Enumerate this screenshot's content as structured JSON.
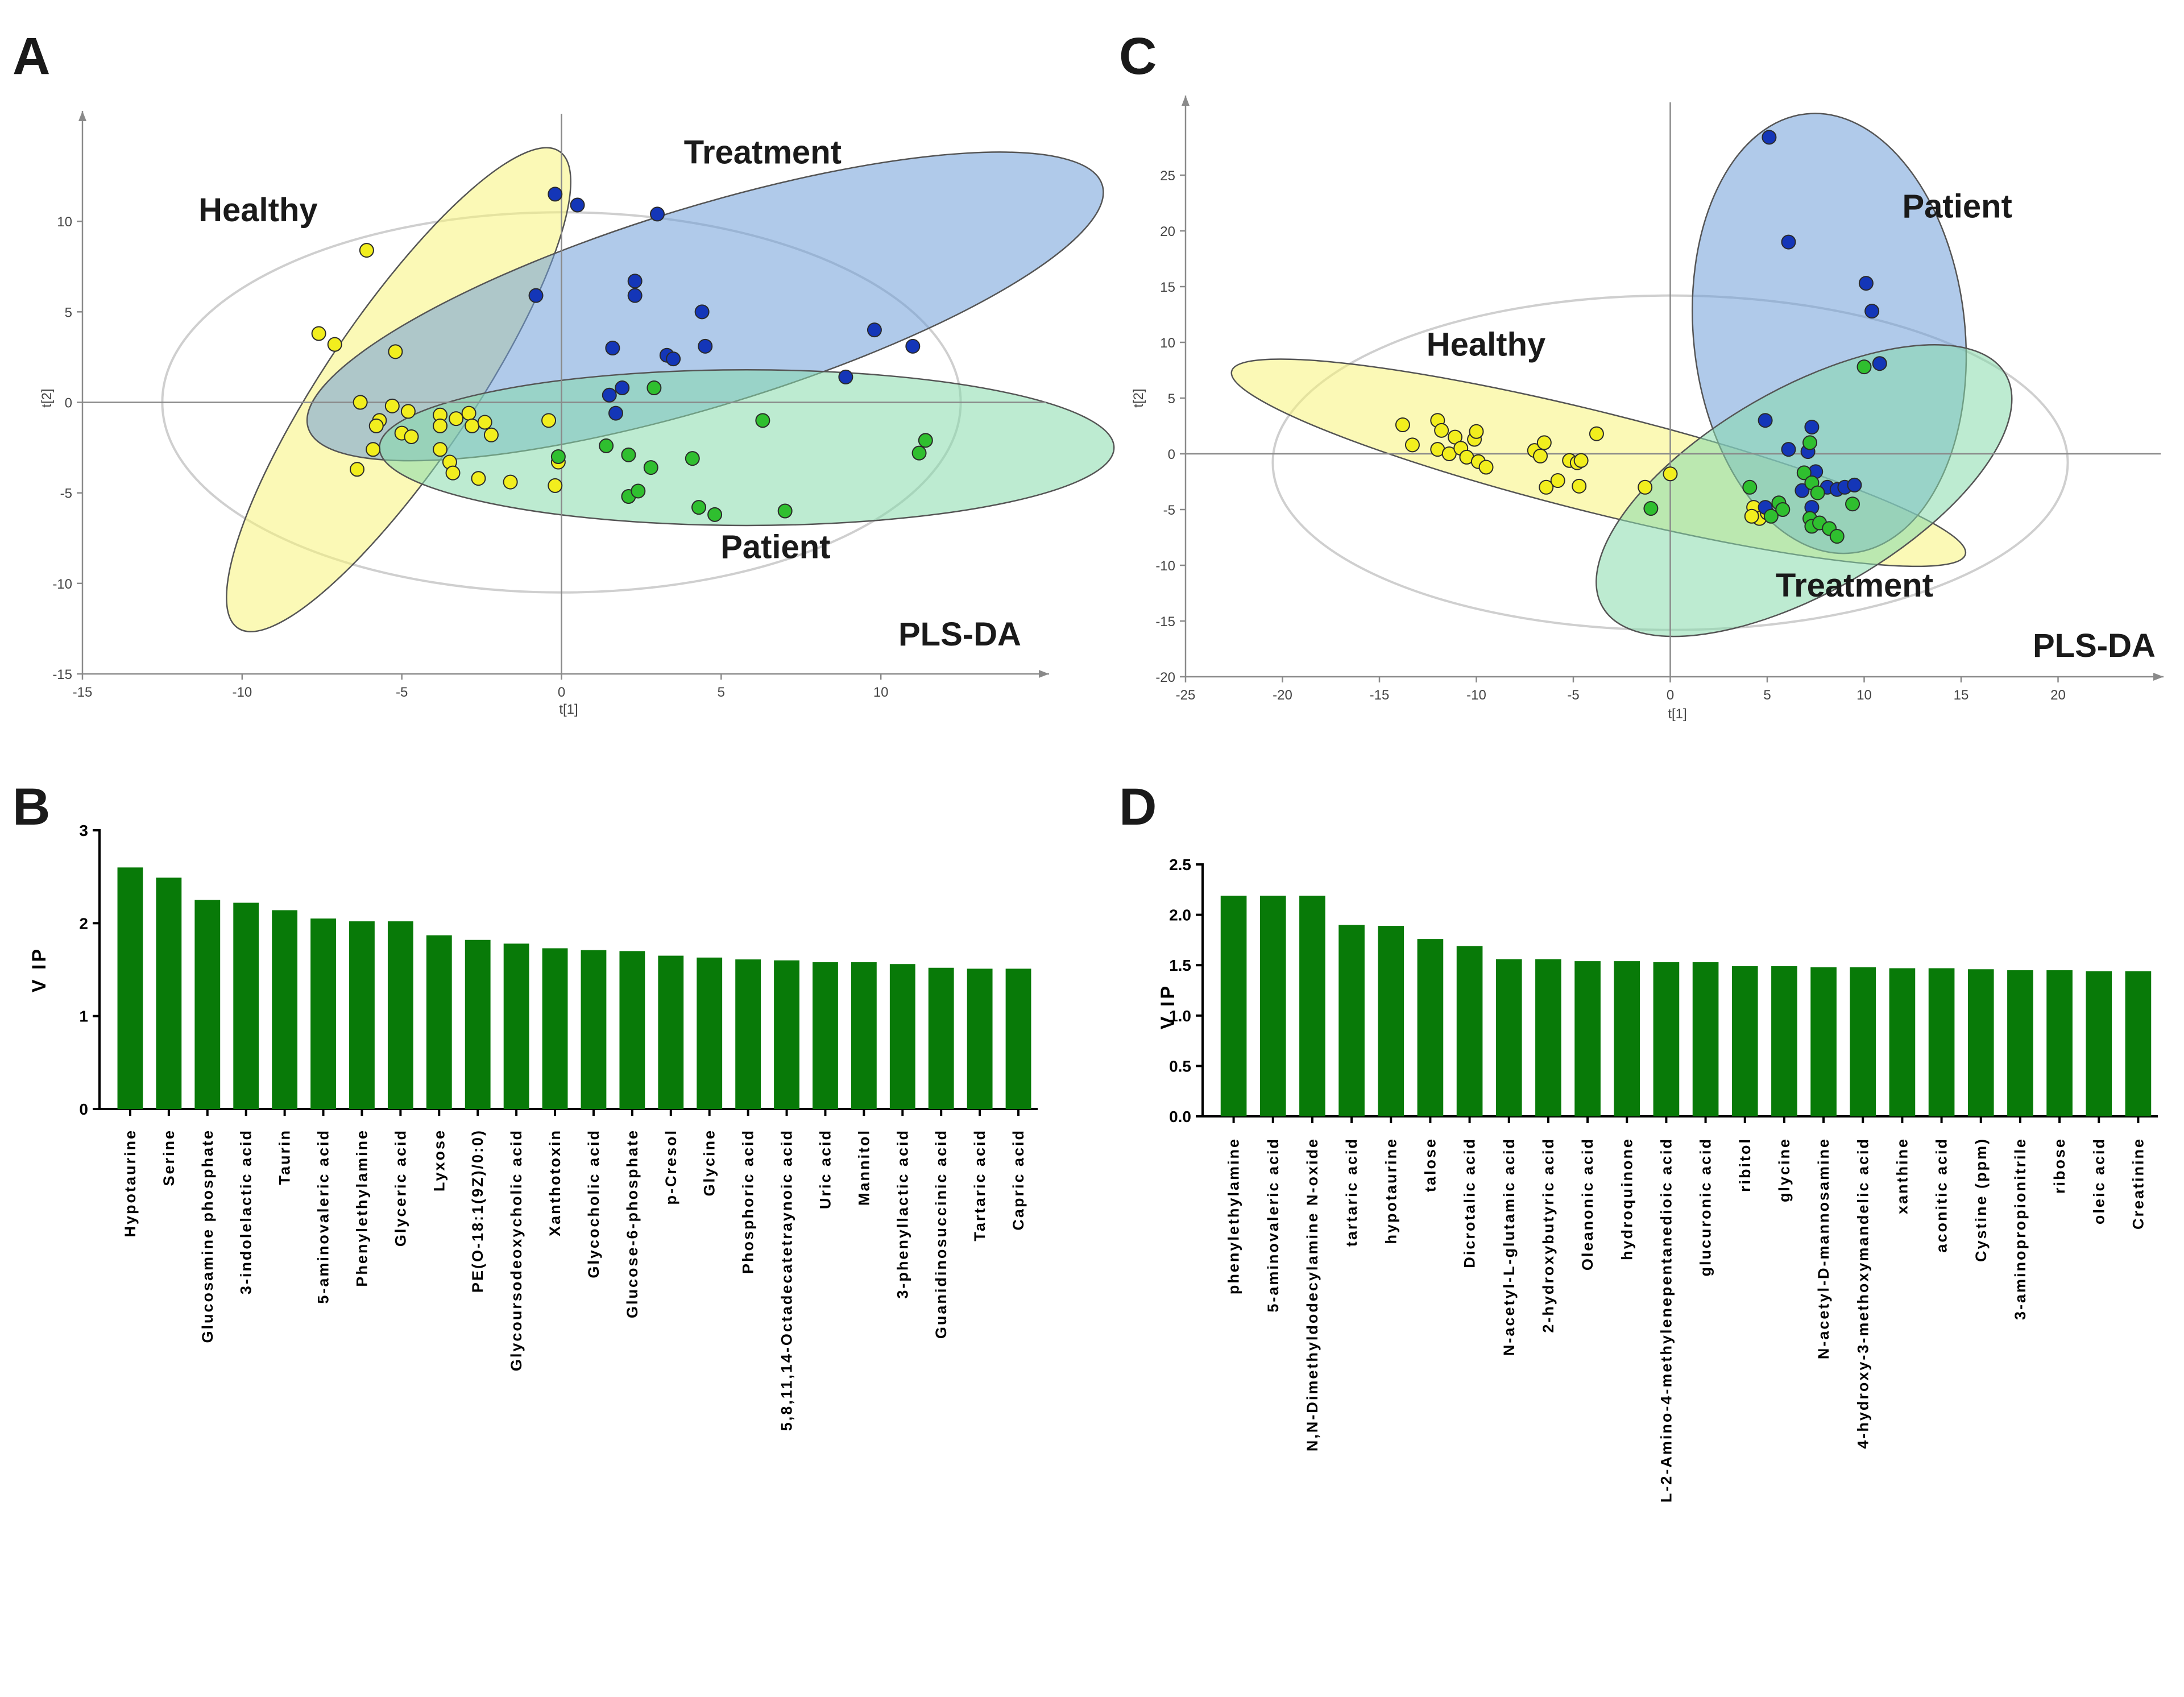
{
  "colors": {
    "healthy_fill": "#f8f47a",
    "healthy_point": "#f2ee1e",
    "treatment_fill": "#6f9fd8",
    "treatment_point": "#1436b8",
    "patient_fill": "#86dbab",
    "patient_point": "#2fbf2f",
    "bar": "#087a08",
    "ellipse_outline": "#cfcfcf"
  },
  "chart_data": [
    {
      "id": "A",
      "type": "scatter",
      "panel_label": "A",
      "method_label": "PLS-DA",
      "xlabel": "t[1]",
      "ylabel": "t[2]",
      "xlim": [
        -15,
        15
      ],
      "ylim": [
        -15,
        15
      ],
      "xticks": [
        -15,
        -10,
        -5,
        0,
        5,
        10
      ],
      "yticks": [
        -15,
        -10,
        -5,
        0,
        5,
        10
      ],
      "hotelling_ellipse": {
        "cx": 0,
        "cy": 0,
        "rx": 12.5,
        "ry": 10.5
      },
      "groups": [
        {
          "name": "Healthy",
          "label_at": [
            -9.5,
            10.0
          ],
          "color_key": "healthy",
          "ellipse": {
            "cx": -5.1,
            "cy": 0.7,
            "rx": 9.0,
            "ry": 4.1,
            "rot": -56
          },
          "points": [
            [
              -6.1,
              8.4
            ],
            [
              -7.6,
              3.8
            ],
            [
              -7.1,
              3.2
            ],
            [
              -5.2,
              2.8
            ],
            [
              -6.3,
              0.0
            ],
            [
              -5.3,
              -0.2
            ],
            [
              -5.7,
              -1.0
            ],
            [
              -5.8,
              -1.3
            ],
            [
              -4.8,
              -0.5
            ],
            [
              -5.0,
              -1.7
            ],
            [
              -4.7,
              -1.9
            ],
            [
              -5.9,
              -2.6
            ],
            [
              -6.4,
              -3.7
            ],
            [
              -3.8,
              -0.7
            ],
            [
              -3.8,
              -1.3
            ],
            [
              -3.3,
              -0.9
            ],
            [
              -2.9,
              -0.6
            ],
            [
              -2.8,
              -1.3
            ],
            [
              -2.4,
              -1.1
            ],
            [
              -2.2,
              -1.8
            ],
            [
              -3.8,
              -2.6
            ],
            [
              -3.5,
              -3.3
            ],
            [
              -3.4,
              -3.9
            ],
            [
              -2.6,
              -4.2
            ],
            [
              -1.6,
              -4.4
            ],
            [
              -0.4,
              -1.0
            ],
            [
              -0.2,
              -4.6
            ],
            [
              -0.1,
              -3.3
            ]
          ]
        },
        {
          "name": "Treatment",
          "label_at": [
            6.3,
            13.2
          ],
          "color_key": "treatment",
          "ellipse": {
            "cx": 4.5,
            "cy": 5.3,
            "rx": 13.0,
            "ry": 5.5,
            "rot": -17
          },
          "points": [
            [
              -0.2,
              11.5
            ],
            [
              0.5,
              10.9
            ],
            [
              3.0,
              10.4
            ],
            [
              -0.8,
              5.9
            ],
            [
              2.3,
              6.7
            ],
            [
              2.3,
              5.9
            ],
            [
              4.4,
              5.0
            ],
            [
              4.5,
              3.1
            ],
            [
              1.6,
              3.0
            ],
            [
              3.3,
              2.6
            ],
            [
              3.5,
              2.4
            ],
            [
              9.8,
              4.0
            ],
            [
              11.0,
              3.1
            ],
            [
              8.9,
              1.4
            ],
            [
              1.9,
              0.8
            ],
            [
              1.5,
              0.4
            ],
            [
              1.7,
              -0.6
            ]
          ]
        },
        {
          "name": "Patient",
          "label_at": [
            6.7,
            -8.6
          ],
          "color_key": "patient",
          "ellipse": {
            "cx": 5.8,
            "cy": -2.5,
            "rx": 11.5,
            "ry": 4.3,
            "rot": 0
          },
          "points": [
            [
              2.9,
              0.8
            ],
            [
              6.3,
              -1.0
            ],
            [
              -0.1,
              -3.0
            ],
            [
              1.4,
              -2.4
            ],
            [
              2.1,
              -2.9
            ],
            [
              2.8,
              -3.6
            ],
            [
              4.1,
              -3.1
            ],
            [
              11.4,
              -2.1
            ],
            [
              11.2,
              -2.8
            ],
            [
              2.1,
              -5.2
            ],
            [
              2.4,
              -4.9
            ],
            [
              4.3,
              -5.8
            ],
            [
              4.8,
              -6.2
            ],
            [
              7.0,
              -6.0
            ]
          ]
        }
      ]
    },
    {
      "id": "C",
      "type": "scatter",
      "panel_label": "C",
      "method_label": "PLS-DA",
      "xlabel": "t[1]",
      "ylabel": "t[2]",
      "xlim": [
        -25,
        25
      ],
      "ylim": [
        -20,
        30
      ],
      "xticks": [
        -25,
        -20,
        -15,
        -10,
        -5,
        0,
        5,
        10,
        15,
        20
      ],
      "yticks": [
        -20,
        -15,
        -10,
        -5,
        0,
        5,
        10,
        15,
        20,
        25
      ],
      "hotelling_ellipse": {
        "cx": 0,
        "cy": -0.8,
        "rx": 20.5,
        "ry": 15.0
      },
      "groups": [
        {
          "name": "Healthy",
          "label_at": [
            -9.5,
            8.8
          ],
          "color_key": "healthy",
          "ellipse": {
            "cx": -3.7,
            "cy": -0.8,
            "rx": 19.5,
            "ry": 4.5,
            "rot": 14
          },
          "points": [
            [
              -13.8,
              2.6
            ],
            [
              -13.3,
              0.8
            ],
            [
              -12.0,
              3.0
            ],
            [
              -11.8,
              2.1
            ],
            [
              -12.0,
              0.4
            ],
            [
              -11.4,
              0.0
            ],
            [
              -11.1,
              1.5
            ],
            [
              -10.8,
              0.5
            ],
            [
              -10.5,
              -0.3
            ],
            [
              -10.1,
              1.3
            ],
            [
              -10.0,
              2.0
            ],
            [
              -9.9,
              -0.7
            ],
            [
              -9.5,
              -1.2
            ],
            [
              -7.0,
              0.3
            ],
            [
              -6.7,
              -0.2
            ],
            [
              -6.5,
              1.0
            ],
            [
              -6.4,
              -3.0
            ],
            [
              -5.8,
              -2.4
            ],
            [
              -5.2,
              -0.6
            ],
            [
              -4.8,
              -0.8
            ],
            [
              -4.6,
              -0.6
            ],
            [
              -4.7,
              -2.9
            ],
            [
              -3.8,
              1.8
            ],
            [
              -1.3,
              -3.0
            ],
            [
              0.0,
              -1.8
            ],
            [
              4.3,
              -4.8
            ],
            [
              4.6,
              -5.8
            ],
            [
              5.0,
              -5.3
            ],
            [
              4.2,
              -5.6
            ]
          ]
        },
        {
          "name": "Patient",
          "label_at": [
            14.8,
            21.2
          ],
          "color_key": "treatment",
          "ellipse": {
            "cx": 8.2,
            "cy": 10.8,
            "rx": 7.0,
            "ry": 19.8,
            "rot": -6
          },
          "points": [
            [
              5.1,
              28.4
            ],
            [
              6.1,
              19.0
            ],
            [
              10.1,
              15.3
            ],
            [
              10.4,
              12.8
            ],
            [
              10.8,
              8.1
            ],
            [
              4.9,
              3.0
            ],
            [
              7.3,
              2.4
            ],
            [
              6.1,
              0.4
            ],
            [
              7.1,
              0.2
            ],
            [
              7.5,
              -1.6
            ],
            [
              8.1,
              -3.0
            ],
            [
              8.6,
              -3.2
            ],
            [
              9.0,
              -3.0
            ],
            [
              6.8,
              -3.3
            ],
            [
              7.3,
              -4.8
            ],
            [
              9.5,
              -2.8
            ],
            [
              4.9,
              -4.8
            ]
          ]
        },
        {
          "name": "Treatment",
          "label_at": [
            9.5,
            -12.8
          ],
          "color_key": "patient",
          "ellipse": {
            "cx": 6.9,
            "cy": -3.3,
            "rx": 12.0,
            "ry": 9.1,
            "rot": -30
          },
          "points": [
            [
              10.0,
              7.8
            ],
            [
              7.2,
              1.0
            ],
            [
              6.9,
              -1.7
            ],
            [
              7.3,
              -2.6
            ],
            [
              4.1,
              -3.0
            ],
            [
              5.6,
              -4.4
            ],
            [
              5.8,
              -5.0
            ],
            [
              5.2,
              -5.6
            ],
            [
              7.2,
              -5.8
            ],
            [
              7.3,
              -6.5
            ],
            [
              7.7,
              -6.2
            ],
            [
              8.2,
              -6.7
            ],
            [
              8.6,
              -7.4
            ],
            [
              9.4,
              -4.5
            ],
            [
              -1.0,
              -4.9
            ],
            [
              7.6,
              -3.5
            ]
          ]
        }
      ]
    },
    {
      "id": "B",
      "type": "bar",
      "panel_label": "B",
      "ylabel": "V IP",
      "ylim": [
        0,
        3
      ],
      "yticks": [
        "0",
        "1",
        "2",
        "3"
      ],
      "categories": [
        "Hypotaurine",
        "Serine",
        "Glucosamine phosphate",
        "3-indolelactic acid",
        "Taurin",
        "5-aminovaleric acid",
        "Phenylethylamine",
        "Glyceric acid",
        "Lyxose",
        "PE(O-18:1(9Z)/0:0)",
        "Glycoursodeoxycholic acid",
        "Xanthotoxin",
        "Glycocholic acid",
        "Glucose-6-phosphate",
        "p-Cresol",
        "Glycine",
        "Phosphoric acid",
        "5,8,11,14-Octadecatetraynoic acid",
        "Uric acid",
        "Mannitol",
        "3-phenyllactic acid",
        "Guanidinosuccinic acid",
        "Tartaric acid",
        "Capric acid"
      ],
      "values": [
        2.6,
        2.49,
        2.25,
        2.22,
        2.14,
        2.05,
        2.02,
        2.02,
        1.87,
        1.82,
        1.78,
        1.73,
        1.71,
        1.7,
        1.65,
        1.63,
        1.61,
        1.6,
        1.58,
        1.58,
        1.56,
        1.52,
        1.51,
        1.51
      ]
    },
    {
      "id": "D",
      "type": "bar",
      "panel_label": "D",
      "ylabel": "V IP",
      "ylim": [
        0,
        2.5
      ],
      "yticks": [
        "0.0",
        "0.5",
        "1.0",
        "1.5",
        "2.0",
        "2.5"
      ],
      "categories": [
        "phenylethylamine",
        "5-aminovaleric acid",
        "N,N-Dimethyldodecylamine N-oxide",
        "tartaric acid",
        "hypotaurine",
        "talose",
        "Dicrotalic acid",
        "N-acetyl-L-glutamic acid",
        "2-hydroxybutyric acid",
        "Oleanonic acid",
        "hydroquinone",
        "L-2-Amino-4-methylenepentanedioic acid",
        "glucuronic acid",
        "ribitol",
        "glycine",
        "N-acetyl-D-mannosamine",
        "4-hydroxy-3-methoxymandelic acid",
        "xanthine",
        "aconitic acid",
        "Cystine (ppm)",
        "3-aminopropionitrile",
        "ribose",
        "oleic acid",
        "Creatinine"
      ],
      "values": [
        2.19,
        2.19,
        2.19,
        1.9,
        1.89,
        1.76,
        1.69,
        1.56,
        1.56,
        1.54,
        1.54,
        1.53,
        1.53,
        1.49,
        1.49,
        1.48,
        1.48,
        1.47,
        1.47,
        1.46,
        1.45,
        1.45,
        1.44,
        1.44
      ]
    }
  ]
}
